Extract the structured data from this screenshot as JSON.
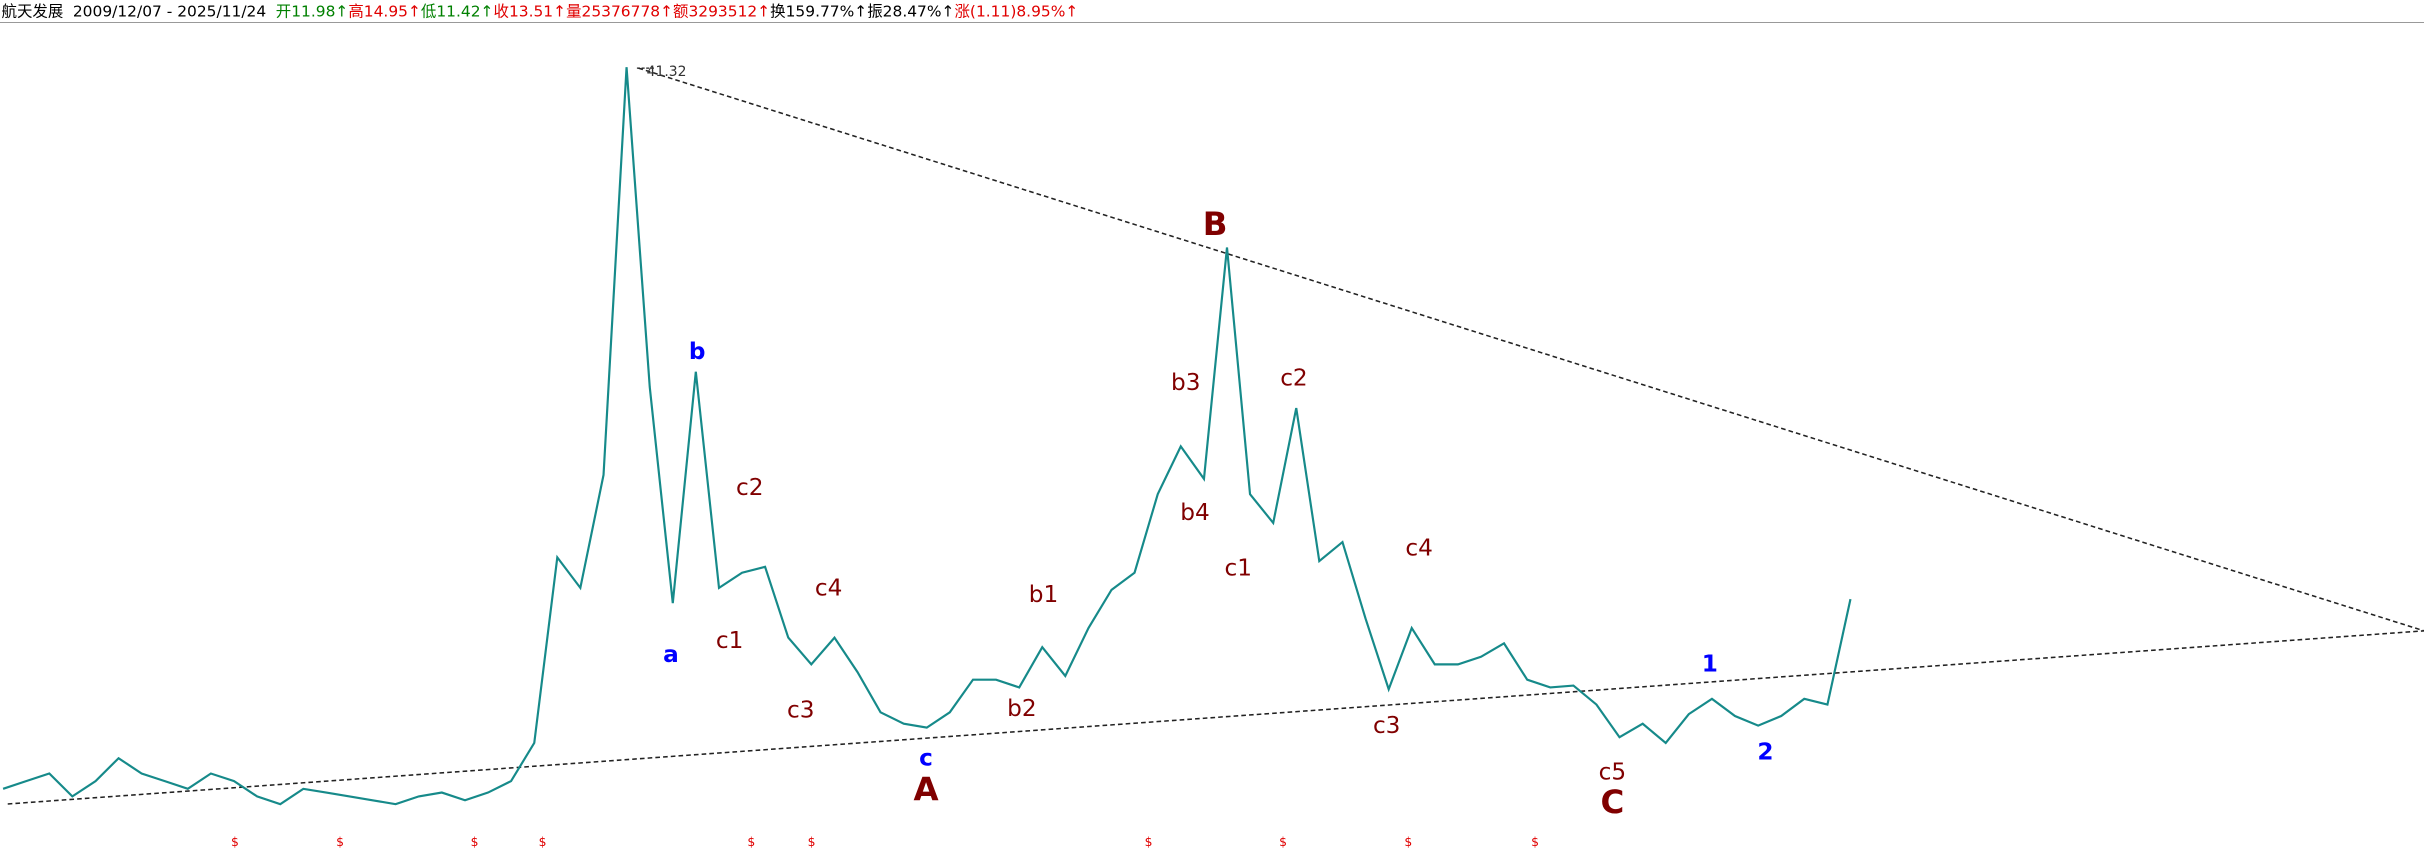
{
  "header": {
    "name": "航天发展",
    "range": "2009/12/07 - 2025/11/24",
    "fields": [
      {
        "text": "开11.98↑",
        "color": "#008000"
      },
      {
        "text": "高14.95↑",
        "color": "#e00000"
      },
      {
        "text": "低11.42↑",
        "color": "#008000"
      },
      {
        "text": "收13.51↑",
        "color": "#e00000"
      },
      {
        "text": "量25376778↑",
        "color": "#e00000"
      },
      {
        "text": "额3293512↑",
        "color": "#e00000"
      },
      {
        "text": "换159.77%↑",
        "color": "#000000"
      },
      {
        "text": "振28.47%↑",
        "color": "#000000"
      },
      {
        "text": "涨(1.11)8.95%↑",
        "color": "#e00000"
      }
    ]
  },
  "chart_data": {
    "type": "line",
    "color": "#168a8a",
    "ylim": [
      0.3,
      43.7
    ],
    "values": [
      3.6,
      4.0,
      4.4,
      3.2,
      4.0,
      5.2,
      4.4,
      4.0,
      3.6,
      4.4,
      4.0,
      3.2,
      2.8,
      3.6,
      3.4,
      3.2,
      3.0,
      2.8,
      3.2,
      3.4,
      3.0,
      3.4,
      4.0,
      6.0,
      15.7,
      14.1,
      20.0,
      41.32,
      24.6,
      13.3,
      25.4,
      14.1,
      14.9,
      15.2,
      11.5,
      10.1,
      11.5,
      9.7,
      7.6,
      7.0,
      6.8,
      7.6,
      9.3,
      9.3,
      8.9,
      11.0,
      9.5,
      12.0,
      14.0,
      14.9,
      19.0,
      21.5,
      19.8,
      31.9,
      19.0,
      17.5,
      23.5,
      15.5,
      16.5,
      12.5,
      8.8,
      12.0,
      10.1,
      10.1,
      10.5,
      11.2,
      9.3,
      8.9,
      9.0,
      8.0,
      6.3,
      7.0,
      6.0,
      7.5,
      8.3,
      7.4,
      6.9,
      7.4,
      8.3,
      8.0,
      13.51
    ],
    "annotations": [
      {
        "text": "a",
        "color": "#0000ff"
      },
      {
        "text": "b",
        "color": "#0000ff"
      },
      {
        "text": "c1",
        "color": "#800000"
      },
      {
        "text": "c2",
        "color": "#800000"
      },
      {
        "text": "c3",
        "color": "#800000"
      },
      {
        "text": "c4",
        "color": "#800000"
      },
      {
        "text": "c",
        "color": "#0000ff"
      },
      {
        "text": "A",
        "color": "#800000"
      },
      {
        "text": "b1",
        "color": "#800000"
      },
      {
        "text": "b2",
        "color": "#800000"
      },
      {
        "text": "b3",
        "color": "#800000"
      },
      {
        "text": "b4",
        "color": "#800000"
      },
      {
        "text": "B",
        "color": "#800000"
      },
      {
        "text": "c1",
        "color": "#800000"
      },
      {
        "text": "c2",
        "color": "#800000"
      },
      {
        "text": "c3",
        "color": "#800000"
      },
      {
        "text": "c4",
        "color": "#800000"
      },
      {
        "text": "c5",
        "color": "#800000"
      },
      {
        "text": "C",
        "color": "#800000"
      },
      {
        "text": "1",
        "color": "#0000ff"
      },
      {
        "text": "2",
        "color": "#0000ff"
      }
    ],
    "markers": [
      "$",
      "$",
      "$",
      "$",
      "$",
      "$",
      "$",
      "$",
      "$",
      "$"
    ]
  }
}
